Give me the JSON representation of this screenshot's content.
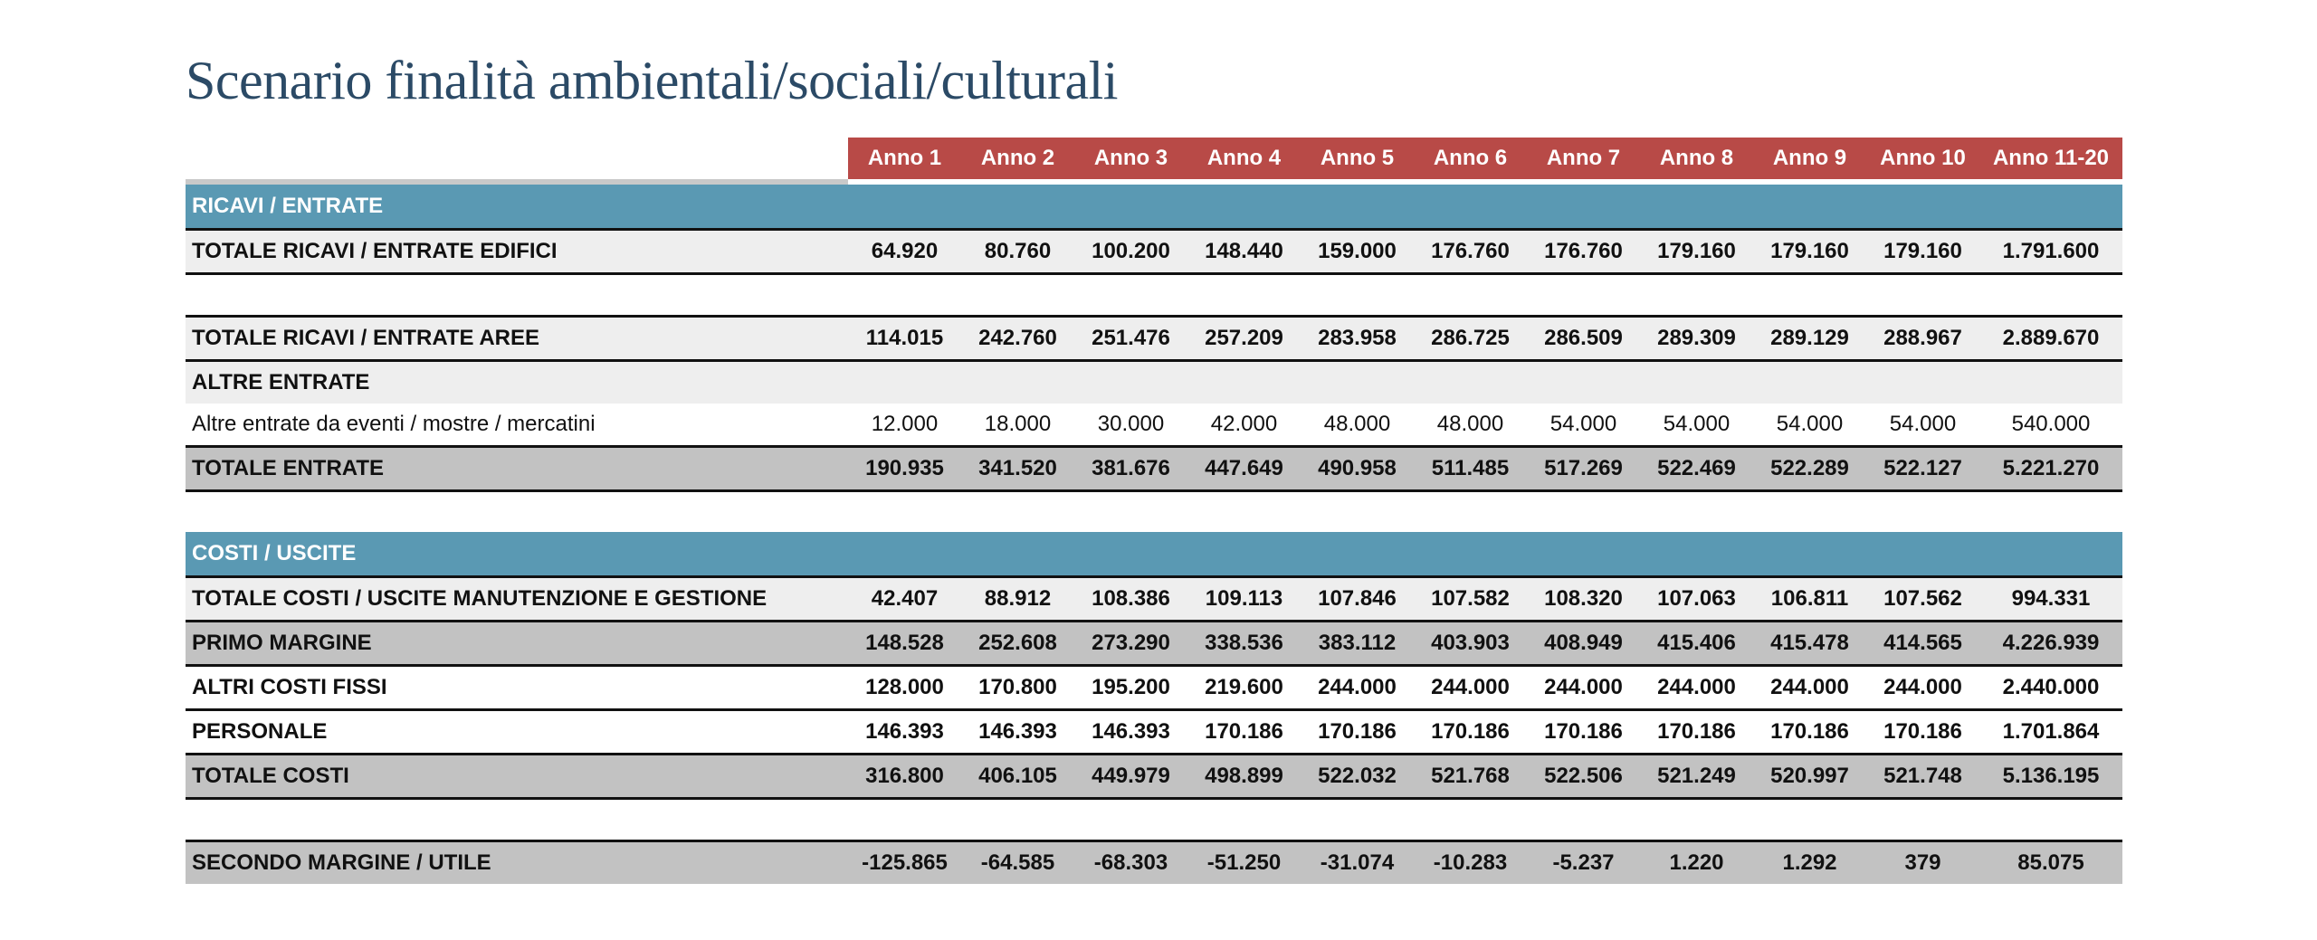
{
  "title": "Scenario finalità ambientali/sociali/culturali",
  "columns": [
    "Anno 1",
    "Anno 2",
    "Anno 3",
    "Anno 4",
    "Anno 5",
    "Anno 6",
    "Anno 7",
    "Anno 8",
    "Anno 9",
    "Anno 10",
    "Anno 11-20"
  ],
  "colors": {
    "header_bg": "#b84a47",
    "section_bg": "#5a99b3",
    "total_bg": "#c2c2c2",
    "light_bg": "#eeeeee",
    "title_color": "#2b4a66"
  },
  "sections": {
    "ricavi": "RICAVI / ENTRATE",
    "costi": "COSTI / USCITE"
  },
  "rows": {
    "ricavi_edifici": {
      "label": "TOTALE RICAVI / ENTRATE EDIFICI",
      "values": [
        "64.920",
        "80.760",
        "100.200",
        "148.440",
        "159.000",
        "176.760",
        "176.760",
        "179.160",
        "179.160",
        "179.160",
        "1.791.600"
      ]
    },
    "ricavi_aree": {
      "label": "TOTALE RICAVI / ENTRATE AREE",
      "values": [
        "114.015",
        "242.760",
        "251.476",
        "257.209",
        "283.958",
        "286.725",
        "286.509",
        "289.309",
        "289.129",
        "288.967",
        "2.889.670"
      ]
    },
    "altre_entrate_header": {
      "label": "ALTRE ENTRATE"
    },
    "altre_entrate": {
      "label": "Altre entrate da eventi / mostre / mercatini",
      "values": [
        "12.000",
        "18.000",
        "30.000",
        "42.000",
        "48.000",
        "48.000",
        "54.000",
        "54.000",
        "54.000",
        "54.000",
        "540.000"
      ]
    },
    "totale_entrate": {
      "label": "TOTALE ENTRATE",
      "values": [
        "190.935",
        "341.520",
        "381.676",
        "447.649",
        "490.958",
        "511.485",
        "517.269",
        "522.469",
        "522.289",
        "522.127",
        "5.221.270"
      ]
    },
    "costi_manutenzione": {
      "label": "TOTALE COSTI / USCITE MANUTENZIONE E GESTIONE",
      "values": [
        "42.407",
        "88.912",
        "108.386",
        "109.113",
        "107.846",
        "107.582",
        "108.320",
        "107.063",
        "106.811",
        "107.562",
        "994.331"
      ]
    },
    "primo_margine": {
      "label": "PRIMO MARGINE",
      "values": [
        "148.528",
        "252.608",
        "273.290",
        "338.536",
        "383.112",
        "403.903",
        "408.949",
        "415.406",
        "415.478",
        "414.565",
        "4.226.939"
      ]
    },
    "altri_costi_fissi": {
      "label": "ALTRI COSTI FISSI",
      "values": [
        "128.000",
        "170.800",
        "195.200",
        "219.600",
        "244.000",
        "244.000",
        "244.000",
        "244.000",
        "244.000",
        "244.000",
        "2.440.000"
      ]
    },
    "personale": {
      "label": "PERSONALE",
      "values": [
        "146.393",
        "146.393",
        "146.393",
        "170.186",
        "170.186",
        "170.186",
        "170.186",
        "170.186",
        "170.186",
        "170.186",
        "1.701.864"
      ]
    },
    "totale_costi": {
      "label": "TOTALE COSTI",
      "values": [
        "316.800",
        "406.105",
        "449.979",
        "498.899",
        "522.032",
        "521.768",
        "522.506",
        "521.249",
        "520.997",
        "521.748",
        "5.136.195"
      ]
    },
    "secondo_margine": {
      "label": "SECONDO MARGINE / UTILE",
      "values": [
        "-125.865",
        "-64.585",
        "-68.303",
        "-51.250",
        "-31.074",
        "-10.283",
        "-5.237",
        "1.220",
        "1.292",
        "379",
        "85.075"
      ]
    }
  }
}
